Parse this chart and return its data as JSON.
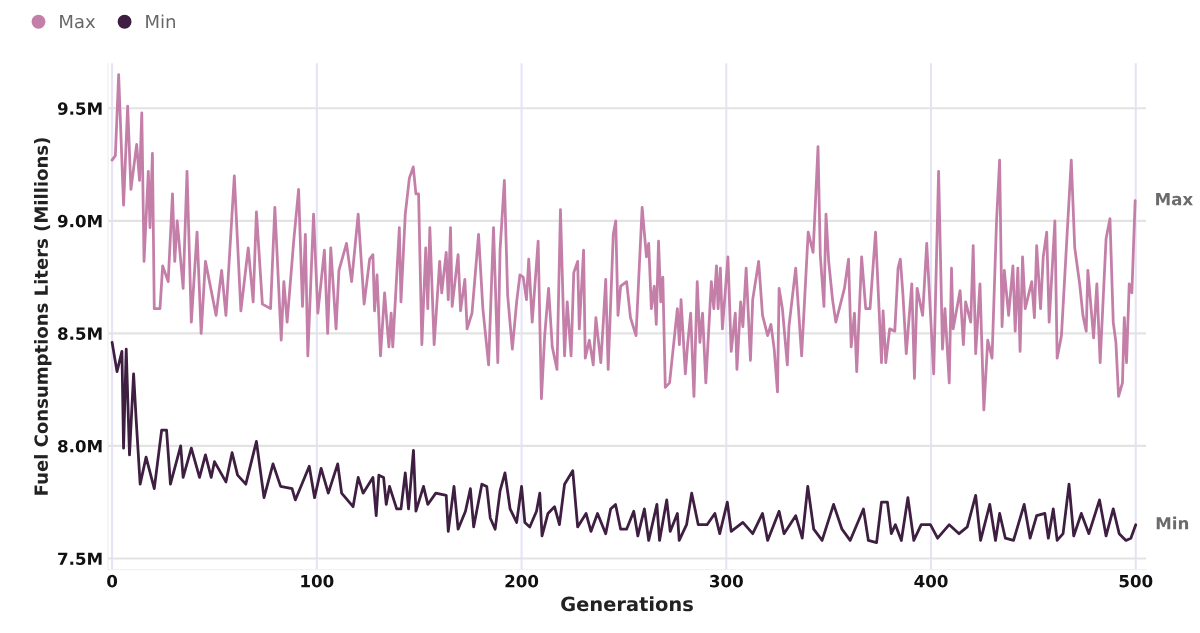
{
  "chart_data": {
    "type": "line",
    "xlabel": "Generations",
    "ylabel": "Fuel Consumptions Liters (Millions)",
    "xlim": [
      -2,
      505
    ],
    "xticks": [
      0,
      100,
      200,
      300,
      400,
      500
    ],
    "ylim": [
      7.45,
      9.7
    ],
    "yticks": [
      {
        "value": 7.5,
        "label": "7.5M"
      },
      {
        "value": 8.0,
        "label": "8.0M"
      },
      {
        "value": 8.5,
        "label": "8.5M"
      },
      {
        "value": 9.0,
        "label": "9.0M"
      },
      {
        "value": 9.5,
        "label": "9.5M"
      }
    ],
    "grid": true,
    "legend": "top left",
    "marker": "none",
    "line_style": "solid",
    "series": [
      {
        "name": "Max",
        "color": "#c47fa9",
        "x": [
          0,
          1.6,
          3.2,
          5.6,
          7.6,
          9.2,
          12,
          13.4,
          14.5,
          15.6,
          17.7,
          18.5,
          19.7,
          20.6,
          23.4,
          24.7,
          27.4,
          29.5,
          30.6,
          31.8,
          34.7,
          36.6,
          38.7,
          41.5,
          43.5,
          45.6,
          50.8,
          53.5,
          55.6,
          59.7,
          62.9,
          66.5,
          68.9,
          70.5,
          73.4,
          77.4,
          79.5,
          82.6,
          83.9,
          85.5,
          88.7,
          91.1,
          93,
          94.4,
          95.6,
          98.4,
          100.5,
          103.7,
          105.3,
          106.8,
          109.4,
          110.8,
          114.5,
          117,
          120.2,
          123.1,
          125.8,
          127.4,
          128.2,
          129.4,
          131.1,
          133.1,
          135.2,
          136.3,
          137.1,
          140.3,
          141.1,
          143.2,
          145.2,
          147.1,
          148.4,
          149.7,
          151.3,
          153.2,
          154.2,
          155.2,
          157.3,
          160,
          161,
          163.2,
          164.2,
          165.3,
          166.1,
          169,
          170.2,
          172.3,
          173.4,
          175.8,
          179,
          181.1,
          183.9,
          186.3,
          188.4,
          189.5,
          191.6,
          193.2,
          195.5,
          197.6,
          199.2,
          200.8,
          202.4,
          203.5,
          205.2,
          208.1,
          209.7,
          211.3,
          213.2,
          215,
          217.3,
          219,
          221,
          222.3,
          224.2,
          225.5,
          227.4,
          228.2,
          230.3,
          231.1,
          233.1,
          235,
          236.3,
          238.7,
          240,
          241.1,
          242.3,
          244.8,
          246,
          247.1,
          248.4,
          251.3,
          253.2,
          255.9,
          258.9,
          261,
          262.1,
          263.4,
          264.8,
          265.8,
          266.9,
          268,
          269,
          270.2,
          272.3,
          276.1,
          277.1,
          277.9,
          280,
          281.1,
          282.6,
          284.2,
          285.8,
          287.1,
          288.4,
          290,
          292.7,
          293.9,
          295.2,
          296,
          297.1,
          298.1,
          300.8,
          302.4,
          304.4,
          305.2,
          307,
          308.1,
          309.7,
          311.8,
          312.9,
          315.8,
          317.7,
          320.2,
          321.8,
          323.4,
          325,
          325.8,
          327.4,
          329.8,
          330.6,
          333.9,
          336.8,
          340,
          342.4,
          344.8,
          345.9,
          347.7,
          348.7,
          350,
          351.9,
          353.5,
          355.2,
          357.7,
          359.7,
          361,
          362.6,
          363.7,
          366.1,
          368.1,
          370.2,
          372.9,
          375.8,
          376.6,
          377.9,
          379.8,
          382.3,
          383.9,
          385,
          386.3,
          387.9,
          390.6,
          391.9,
          393.2,
          395.9,
          397.9,
          401.3,
          403.7,
          405.6,
          406.8,
          408.9,
          410,
          410.8,
          414.2,
          415.8,
          416.9,
          419.4,
          420.6,
          421.8,
          423.9,
          425.8,
          427.7,
          429.8,
          432,
          433.5,
          434.7,
          435.8,
          437.9,
          440,
          441.1,
          442.4,
          443.5,
          444.7,
          446,
          449.2,
          450.5,
          451.6,
          453.5,
          454.8,
          456.5,
          457.7,
          460.5,
          461.6,
          463.7,
          466.1,
          468.5,
          470.2,
          472.6,
          474.2,
          475.8,
          476.6,
          479.4,
          481,
          482.6,
          484.7,
          485.5,
          487.4,
          489,
          490.3,
          491.6,
          493.5,
          494.4,
          495.5,
          496.8,
          498.1,
          499.7
        ],
        "values": [
          9.27,
          9.29,
          9.65,
          9.07,
          9.51,
          9.14,
          9.34,
          9.18,
          9.48,
          8.82,
          9.22,
          8.97,
          9.3,
          8.61,
          8.61,
          8.8,
          8.73,
          9.12,
          8.82,
          9.0,
          8.7,
          9.22,
          8.55,
          8.95,
          8.5,
          8.82,
          8.58,
          8.78,
          8.58,
          9.2,
          8.6,
          8.88,
          8.64,
          9.04,
          8.63,
          8.61,
          9.06,
          8.47,
          8.73,
          8.55,
          8.91,
          9.14,
          8.62,
          8.94,
          8.4,
          9.03,
          8.59,
          8.87,
          8.5,
          8.88,
          8.52,
          8.78,
          8.9,
          8.73,
          9.03,
          8.63,
          8.83,
          8.85,
          8.6,
          8.76,
          8.4,
          8.68,
          8.44,
          8.59,
          8.44,
          8.97,
          8.64,
          9.03,
          9.19,
          9.24,
          9.12,
          9.12,
          8.45,
          8.88,
          8.61,
          8.97,
          8.45,
          8.82,
          8.68,
          8.86,
          8.65,
          8.97,
          8.62,
          8.85,
          8.6,
          8.74,
          8.52,
          8.59,
          8.94,
          8.61,
          8.36,
          8.97,
          8.37,
          8.87,
          9.18,
          8.67,
          8.43,
          8.64,
          8.76,
          8.75,
          8.65,
          8.83,
          8.55,
          8.91,
          8.21,
          8.49,
          8.7,
          8.44,
          8.34,
          9.05,
          8.4,
          8.64,
          8.4,
          8.77,
          8.82,
          8.52,
          8.87,
          8.39,
          8.47,
          8.36,
          8.57,
          8.37,
          8.56,
          8.74,
          8.34,
          8.94,
          9.0,
          8.58,
          8.71,
          8.73,
          8.57,
          8.49,
          9.06,
          8.84,
          8.9,
          8.61,
          8.71,
          8.54,
          8.91,
          8.64,
          8.75,
          8.26,
          8.28,
          8.61,
          8.45,
          8.65,
          8.32,
          8.45,
          8.59,
          8.22,
          8.73,
          8.46,
          8.59,
          8.28,
          8.73,
          8.61,
          8.8,
          8.61,
          8.79,
          8.52,
          8.84,
          8.42,
          8.59,
          8.34,
          8.64,
          8.53,
          8.79,
          8.38,
          8.65,
          8.82,
          8.58,
          8.49,
          8.54,
          8.43,
          8.24,
          8.7,
          8.61,
          8.36,
          8.53,
          8.79,
          8.4,
          8.95,
          8.86,
          9.33,
          8.85,
          8.62,
          9.03,
          8.82,
          8.65,
          8.55,
          8.61,
          8.7,
          8.83,
          8.44,
          8.59,
          8.33,
          8.84,
          8.61,
          8.61,
          8.95,
          8.37,
          8.6,
          8.37,
          8.52,
          8.51,
          8.79,
          8.83,
          8.67,
          8.41,
          8.72,
          8.3,
          8.7,
          8.58,
          8.9,
          8.32,
          9.22,
          8.43,
          8.61,
          8.28,
          8.79,
          8.52,
          8.69,
          8.45,
          8.64,
          8.55,
          8.89,
          8.41,
          8.72,
          8.16,
          8.47,
          8.39,
          9.0,
          9.27,
          8.53,
          8.78,
          8.58,
          8.8,
          8.51,
          8.79,
          8.42,
          8.84,
          8.61,
          8.73,
          8.57,
          8.89,
          8.61,
          8.84,
          8.95,
          8.55,
          9.0,
          8.39,
          8.49,
          8.88,
          9.27,
          8.88,
          8.72,
          8.58,
          8.51,
          8.78,
          8.48,
          8.72,
          8.37,
          8.77,
          8.92,
          9.01,
          8.55,
          8.46,
          8.22,
          8.28,
          8.57,
          8.37,
          8.72,
          8.68,
          9.09
        ]
      },
      {
        "name": "Min",
        "color": "#3e1f41",
        "x": [
          0,
          2.4,
          4.8,
          5.6,
          6.9,
          8.5,
          10.5,
          11.8,
          13.7,
          16.6,
          20.6,
          24.2,
          26.6,
          28.5,
          33.5,
          34.7,
          38.7,
          42.7,
          45.6,
          48.4,
          50,
          55.6,
          58.6,
          61.3,
          65.3,
          70.5,
          74.2,
          78.6,
          82.3,
          87.9,
          89.5,
          96.3,
          98.9,
          102.1,
          105.6,
          110.2,
          112.1,
          117.7,
          120.2,
          122.6,
          127.4,
          129,
          130.3,
          132.6,
          133.9,
          135.5,
          139,
          141.1,
          143.2,
          144.8,
          147.2,
          148.4,
          152.1,
          154.2,
          158.1,
          163.2,
          164.2,
          167,
          169,
          172.6,
          175,
          176.6,
          180.6,
          183,
          184.7,
          187.1,
          189.5,
          191.9,
          194.4,
          197.6,
          200,
          201.6,
          204,
          207.3,
          208.9,
          210,
          212.9,
          216.1,
          218.5,
          221,
          225,
          227.4,
          231.5,
          233.9,
          237.1,
          241.1,
          243.5,
          245.9,
          248.4,
          251.3,
          254.8,
          256.8,
          260,
          262.1,
          266.1,
          267.4,
          270.9,
          272.6,
          276.1,
          277,
          280.6,
          283.1,
          286.3,
          290.6,
          294.4,
          296.8,
          300.5,
          302.4,
          308.1,
          312.9,
          317.7,
          320.2,
          325.8,
          328.2,
          333.9,
          337.1,
          339.8,
          342.7,
          346.8,
          352.4,
          356.5,
          360.5,
          367,
          369.4,
          373.4,
          375.8,
          378.7,
          380.6,
          382.6,
          385.5,
          388.7,
          391.6,
          395.2,
          399.7,
          403.2,
          408.9,
          413.7,
          417.7,
          421.8,
          424.2,
          428.7,
          431.5,
          433.5,
          436.3,
          440.3,
          445.5,
          448.4,
          451.6,
          455.6,
          457.3,
          459.7,
          461.6,
          464.5,
          467.4,
          469.7,
          473.4,
          477.1,
          482.3,
          485.5,
          489,
          491.9,
          495.2,
          497.6,
          500
        ],
        "values": [
          8.46,
          8.33,
          8.42,
          7.99,
          8.43,
          7.96,
          8.32,
          8.11,
          7.83,
          7.95,
          7.81,
          8.07,
          8.07,
          7.83,
          8.0,
          7.86,
          7.99,
          7.86,
          7.96,
          7.86,
          7.93,
          7.84,
          7.97,
          7.87,
          7.83,
          8.02,
          7.77,
          7.92,
          7.82,
          7.81,
          7.76,
          7.91,
          7.77,
          7.9,
          7.79,
          7.92,
          7.79,
          7.73,
          7.86,
          7.79,
          7.86,
          7.69,
          7.87,
          7.86,
          7.74,
          7.82,
          7.72,
          7.72,
          7.88,
          7.72,
          7.98,
          7.71,
          7.82,
          7.74,
          7.79,
          7.78,
          7.62,
          7.82,
          7.63,
          7.71,
          7.81,
          7.64,
          7.83,
          7.82,
          7.68,
          7.63,
          7.8,
          7.88,
          7.72,
          7.66,
          7.82,
          7.66,
          7.64,
          7.71,
          7.79,
          7.6,
          7.7,
          7.73,
          7.65,
          7.83,
          7.89,
          7.64,
          7.7,
          7.62,
          7.7,
          7.61,
          7.72,
          7.74,
          7.63,
          7.63,
          7.71,
          7.6,
          7.72,
          7.58,
          7.74,
          7.58,
          7.76,
          7.62,
          7.7,
          7.58,
          7.65,
          7.79,
          7.65,
          7.65,
          7.7,
          7.61,
          7.75,
          7.62,
          7.66,
          7.61,
          7.7,
          7.58,
          7.71,
          7.61,
          7.69,
          7.59,
          7.82,
          7.63,
          7.58,
          7.74,
          7.63,
          7.58,
          7.72,
          7.58,
          7.57,
          7.75,
          7.75,
          7.61,
          7.65,
          7.58,
          7.77,
          7.58,
          7.65,
          7.65,
          7.59,
          7.65,
          7.61,
          7.64,
          7.78,
          7.58,
          7.74,
          7.58,
          7.7,
          7.59,
          7.58,
          7.74,
          7.59,
          7.69,
          7.7,
          7.59,
          7.72,
          7.58,
          7.61,
          7.83,
          7.6,
          7.7,
          7.61,
          7.76,
          7.6,
          7.72,
          7.61,
          7.58,
          7.59,
          7.65
        ]
      }
    ]
  }
}
